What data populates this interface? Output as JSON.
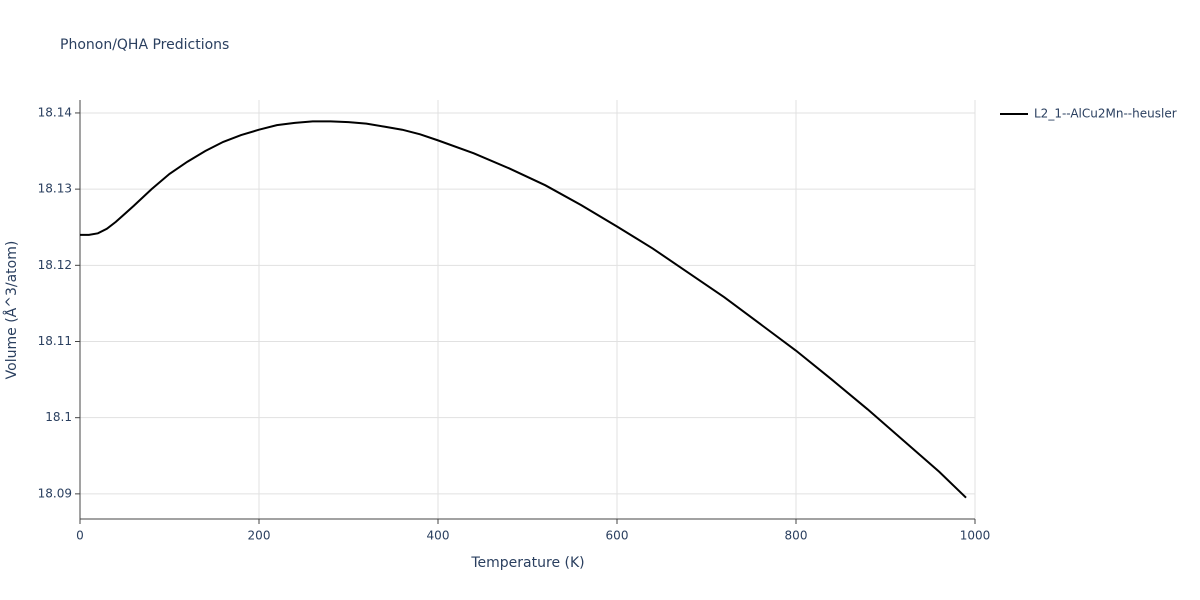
{
  "chart_data": {
    "type": "line",
    "title": "Phonon/QHA Predictions",
    "x_label": "Temperature (K)",
    "y_label": "Volume (Å^3/atom)",
    "x": [
      0,
      10,
      20,
      30,
      40,
      60,
      80,
      100,
      120,
      140,
      160,
      180,
      200,
      220,
      240,
      260,
      280,
      300,
      320,
      340,
      360,
      380,
      400,
      440,
      480,
      520,
      560,
      600,
      640,
      680,
      720,
      760,
      800,
      840,
      880,
      920,
      960,
      990
    ],
    "series": [
      {
        "name": "L2_1--AlCu2Mn--heusler",
        "color": "#000000",
        "values": [
          18.124,
          18.124,
          18.1242,
          18.1248,
          18.1257,
          18.1278,
          18.13,
          18.132,
          18.1336,
          18.135,
          18.1362,
          18.1371,
          18.1378,
          18.1384,
          18.1387,
          18.1389,
          18.1389,
          18.1388,
          18.1386,
          18.1382,
          18.1378,
          18.1372,
          18.1364,
          18.1347,
          18.1327,
          18.1305,
          18.1279,
          18.1251,
          18.1222,
          18.119,
          18.1158,
          18.1123,
          18.1088,
          18.105,
          18.1011,
          18.097,
          18.0929,
          18.0895
        ]
      }
    ],
    "xlim": [
      0,
      1000
    ],
    "xticks": [
      0,
      200,
      400,
      600,
      800,
      1000
    ],
    "ylim": [
      18.0867,
      18.1417
    ],
    "yticks": [
      18.09,
      18.1,
      18.11,
      18.12,
      18.13,
      18.14
    ],
    "grid": true,
    "legend": "right"
  }
}
